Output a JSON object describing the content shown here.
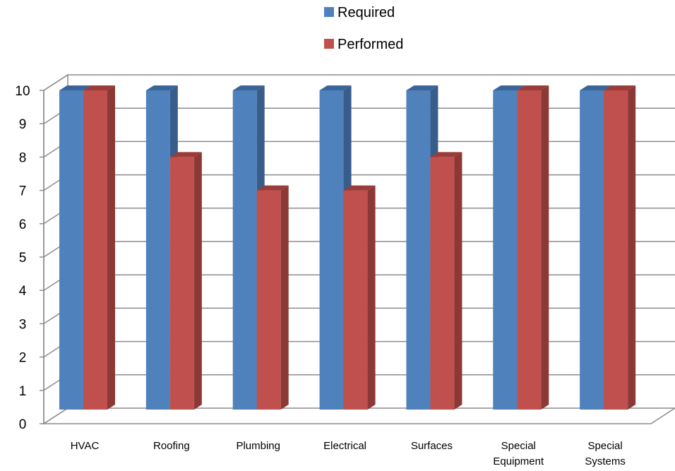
{
  "chart_data": {
    "type": "bar",
    "categories": [
      [
        "HVAC"
      ],
      [
        "Roofing"
      ],
      [
        "Plumbing"
      ],
      [
        "Electrical"
      ],
      [
        "Surfaces"
      ],
      [
        "Special",
        "Equipment"
      ],
      [
        "Special",
        "Systems"
      ]
    ],
    "series": [
      {
        "name": "Required",
        "values": [
          10,
          10,
          10,
          10,
          10,
          10,
          10
        ],
        "color": "#4F81BD",
        "side_color": "#385D8A",
        "top_color": "#3B6598"
      },
      {
        "name": "Performed",
        "values": [
          10,
          8,
          7,
          7,
          8,
          10,
          10
        ],
        "color": "#C0504D",
        "side_color": "#8C3836",
        "top_color": "#9A3C39"
      }
    ],
    "ylim": [
      0,
      10
    ],
    "yticks": [
      0,
      1,
      2,
      3,
      4,
      5,
      6,
      7,
      8,
      9,
      10
    ],
    "grid": true,
    "legend_position": "top-center",
    "style": "3d-clustered-column"
  }
}
